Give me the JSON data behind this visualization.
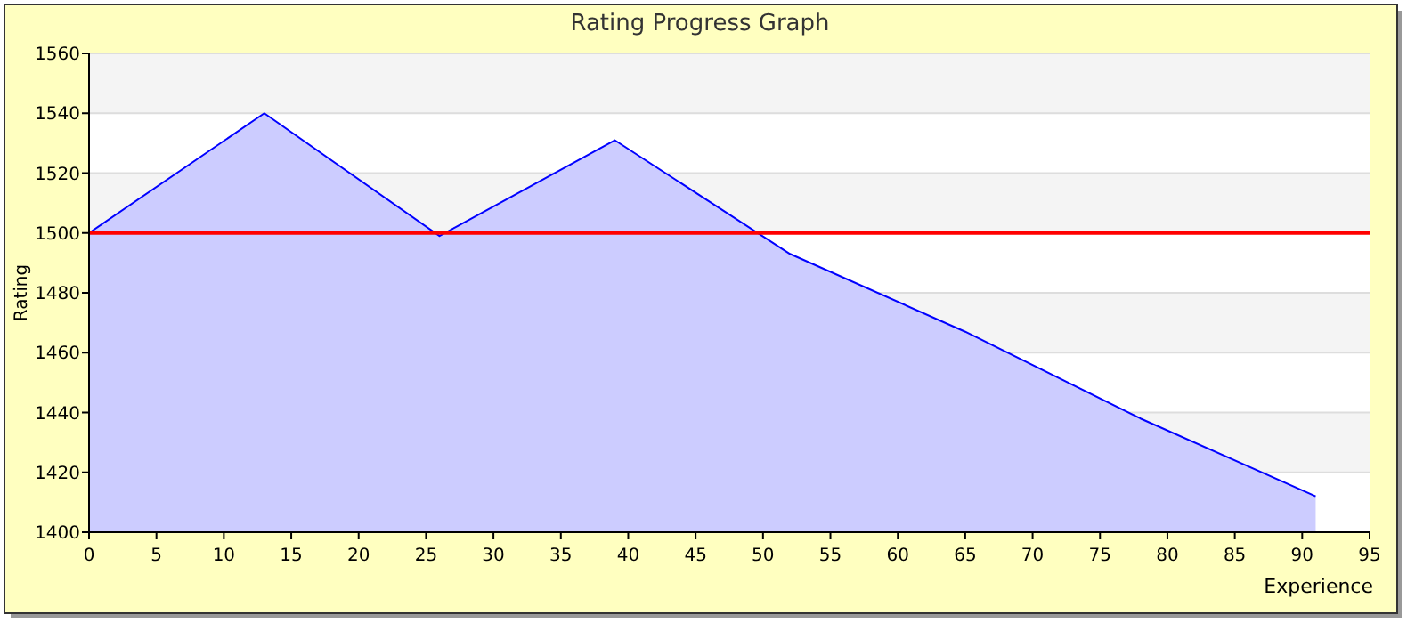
{
  "chart_data": {
    "type": "area",
    "title": "Rating Progress Graph",
    "xlabel": "Experience",
    "ylabel": "Rating",
    "x": [
      0,
      13,
      26,
      39,
      52,
      65,
      78,
      91
    ],
    "series": [
      {
        "color": "#0000ff",
        "values": [
          1500,
          1540,
          1499,
          1531,
          1493,
          1467,
          1438,
          1412
        ]
      }
    ],
    "xlim": [
      0,
      95
    ],
    "xticks": [
      0,
      5,
      10,
      15,
      20,
      25,
      30,
      35,
      40,
      45,
      50,
      55,
      60,
      65,
      70,
      75,
      80,
      85,
      90,
      95
    ],
    "ylim": [
      1400,
      1560
    ],
    "yticks": [
      1400,
      1420,
      1440,
      1460,
      1480,
      1500,
      1520,
      1540,
      1560
    ],
    "grid": "y",
    "ref_lines": [
      {
        "axis": "y",
        "value": 1500,
        "color": "#ff0000"
      }
    ]
  }
}
